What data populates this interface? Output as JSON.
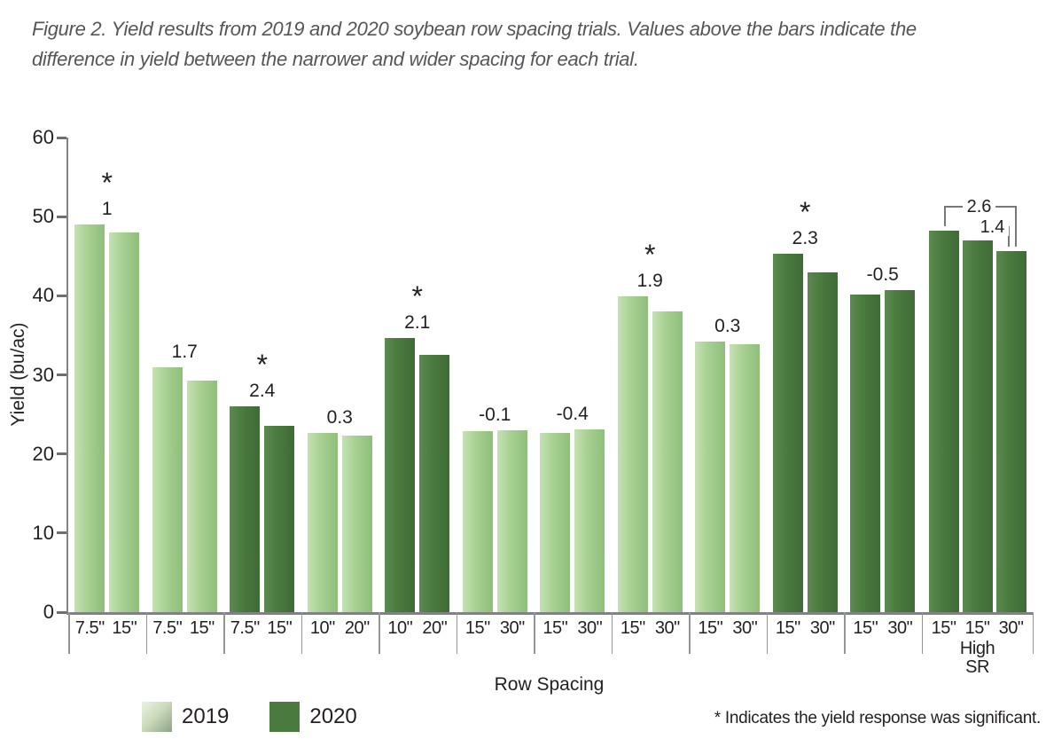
{
  "caption": {
    "line1": "Figure 2. Yield results from 2019 and 2020 soybean row spacing trials. Values above the bars indicate the",
    "line2": "difference in yield between the narrower and wider spacing for each trial."
  },
  "chart_data": {
    "type": "bar",
    "title": "Figure 2. Yield results from 2019 and 2020 soybean row spacing trials. Values above the bars indicate the difference in yield between the narrower and wider spacing for each trial.",
    "ylabel": "Yield (bu/ac)",
    "xlabel": "Row Spacing",
    "ylim": [
      0,
      60
    ],
    "yticks": [
      0,
      10,
      20,
      30,
      40,
      50,
      60
    ],
    "grid": false,
    "legend_position": "bottom-left",
    "star_glyph": "*",
    "footnote": "* Indicates the yield response was significant.",
    "legend": [
      {
        "label": "2019",
        "color_key": "light"
      },
      {
        "label": "2020",
        "color_key": "dark"
      }
    ],
    "colors": {
      "light_bar": "#a9d294",
      "dark_bar": "#4b7b3f",
      "axis": "#808285",
      "caption_text": "#54565a",
      "text": "#231f20"
    },
    "groups": [
      {
        "season": "2019",
        "spacings": [
          "7.5\"",
          "15\""
        ],
        "values": [
          49.0,
          48.0
        ],
        "diff_label": "1",
        "significant": true
      },
      {
        "season": "2019",
        "spacings": [
          "7.5\"",
          "15\""
        ],
        "values": [
          31.0,
          29.3
        ],
        "diff_label": "1.7",
        "significant": false
      },
      {
        "season": "2020",
        "spacings": [
          "7.5\"",
          "15\""
        ],
        "values": [
          26.0,
          23.6
        ],
        "diff_label": "2.4",
        "significant": true
      },
      {
        "season": "2019",
        "spacings": [
          "10\"",
          "20\""
        ],
        "values": [
          22.6,
          22.3
        ],
        "diff_label": "0.3",
        "significant": false
      },
      {
        "season": "2020",
        "spacings": [
          "10\"",
          "20\""
        ],
        "values": [
          34.6,
          32.5
        ],
        "diff_label": "2.1",
        "significant": true
      },
      {
        "season": "2019",
        "spacings": [
          "15\"",
          "30\""
        ],
        "values": [
          22.9,
          23.0
        ],
        "diff_label": "-0.1",
        "significant": false
      },
      {
        "season": "2019",
        "spacings": [
          "15\"",
          "30\""
        ],
        "values": [
          22.7,
          23.1
        ],
        "diff_label": "-0.4",
        "significant": false
      },
      {
        "season": "2019",
        "spacings": [
          "15\"",
          "30\""
        ],
        "values": [
          39.9,
          38.0
        ],
        "diff_label": "1.9",
        "significant": true
      },
      {
        "season": "2019",
        "spacings": [
          "15\"",
          "30\""
        ],
        "values": [
          34.2,
          33.9
        ],
        "diff_label": "0.3",
        "significant": false
      },
      {
        "season": "2020",
        "spacings": [
          "15\"",
          "30\""
        ],
        "values": [
          45.3,
          43.0
        ],
        "diff_label": "2.3",
        "significant": true
      },
      {
        "season": "2020",
        "spacings": [
          "15\"",
          "30\""
        ],
        "values": [
          40.2,
          40.7
        ],
        "diff_label": "-0.5",
        "significant": false
      },
      {
        "season": "2020",
        "spacings": [
          "15\"",
          "15\"",
          "30\""
        ],
        "sub_label": "High\nSR",
        "sub_index": 1,
        "values": [
          48.2,
          47.0,
          45.6
        ],
        "significant": false,
        "brackets": [
          {
            "from": 0,
            "to": 2,
            "label": "2.6"
          },
          {
            "from": 1,
            "to": 2,
            "label": "1.4"
          }
        ]
      }
    ]
  }
}
